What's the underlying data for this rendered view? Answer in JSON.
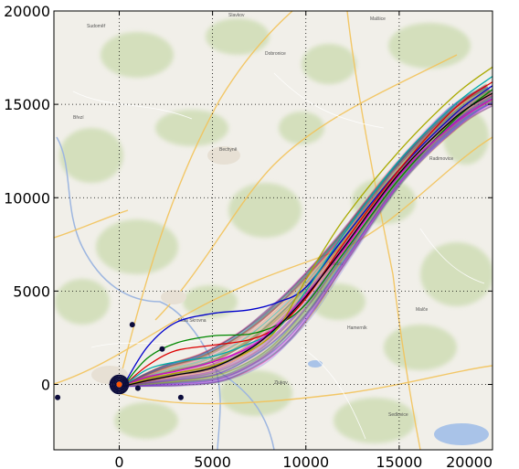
{
  "chart_data": {
    "type": "line",
    "background": "road map",
    "xlim": [
      -3500,
      20000
    ],
    "ylim": [
      -3500,
      20000
    ],
    "xticks": [
      0,
      5000,
      10000,
      15000,
      20000
    ],
    "yticks": [
      0,
      5000,
      10000,
      15000,
      20000
    ],
    "xtick_labels": [
      "0",
      "5000",
      "10000",
      "15000",
      "20000"
    ],
    "ytick_labels": [
      "0",
      "5000",
      "10000",
      "15000",
      "20000"
    ],
    "grid": true,
    "grid_style": "dotted",
    "title": "",
    "xlabel": "",
    "ylabel": "",
    "series": [
      {
        "color": "#0000cc",
        "x": [
          200,
          1500,
          3000,
          5000,
          7000,
          8500,
          10000,
          12000,
          15000,
          18000,
          20000
        ],
        "y": [
          -100,
          2000,
          3300,
          3800,
          4000,
          4400,
          5200,
          7800,
          11500,
          14500,
          16000
        ]
      },
      {
        "color": "#008800",
        "x": [
          200,
          1500,
          3000,
          5000,
          7000,
          8500,
          10000,
          12000,
          15000,
          18000,
          20000
        ],
        "y": [
          -100,
          1400,
          2200,
          2600,
          2700,
          3200,
          4300,
          7000,
          11000,
          14200,
          15800
        ]
      },
      {
        "color": "#dd0000",
        "x": [
          200,
          1500,
          3000,
          5000,
          7000,
          8500,
          10000,
          12000,
          15000,
          18000,
          20000
        ],
        "y": [
          -100,
          1000,
          1800,
          2100,
          2400,
          3100,
          4600,
          7500,
          11500,
          14800,
          16200
        ]
      },
      {
        "color": "#00aaaa",
        "x": [
          200,
          1500,
          3000,
          5000,
          7000,
          8500,
          10000,
          12000,
          15000,
          18000,
          20000
        ],
        "y": [
          -100,
          800,
          1200,
          1500,
          2200,
          3000,
          5000,
          8000,
          12000,
          15000,
          16500
        ]
      },
      {
        "color": "#cc00cc",
        "x": [
          200,
          1500,
          3000,
          5000,
          7000,
          8500,
          10000,
          12000,
          15000,
          18000,
          20000
        ],
        "y": [
          -100,
          400,
          700,
          1200,
          2000,
          3200,
          4800,
          7200,
          11200,
          14000,
          15300
        ]
      },
      {
        "color": "#aaaa00",
        "x": [
          200,
          1500,
          3000,
          5000,
          7000,
          8500,
          10000,
          12000,
          15000,
          18000,
          20000
        ],
        "y": [
          -100,
          300,
          600,
          1000,
          1800,
          3000,
          5600,
          8800,
          12500,
          15500,
          17000
        ]
      },
      {
        "color": "#000000",
        "x": [
          200,
          1500,
          3000,
          5000,
          7000,
          8500,
          10000,
          12000,
          15000,
          18000,
          20000
        ],
        "y": [
          -100,
          200,
          500,
          900,
          1900,
          3100,
          4700,
          7300,
          11300,
          14300,
          15600
        ]
      }
    ],
    "points": [
      {
        "x": -3300,
        "y": -700
      },
      {
        "x": 700,
        "y": 3200
      },
      {
        "x": 2300,
        "y": 1900
      },
      {
        "x": 3300,
        "y": -700
      },
      {
        "x": 1000,
        "y": -200
      },
      {
        "x": 0,
        "y": 0
      }
    ]
  }
}
